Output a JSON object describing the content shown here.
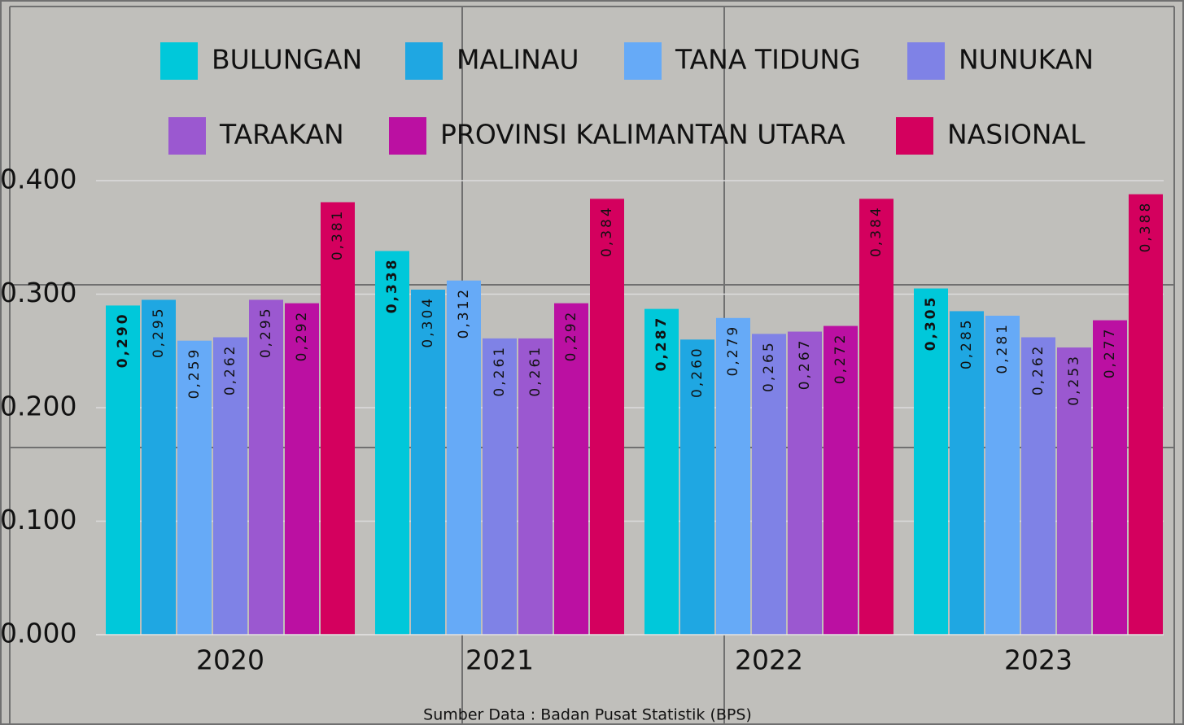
{
  "chart_data": {
    "type": "bar",
    "categories": [
      "2020",
      "2021",
      "2022",
      "2023"
    ],
    "series": [
      {
        "name": "BULUNGAN",
        "color": "#00c8da",
        "bold_labels": true,
        "values": [
          0.29,
          0.338,
          0.287,
          0.305
        ],
        "value_labels": [
          "0,290",
          "0,338",
          "0,287",
          "0,305"
        ]
      },
      {
        "name": "MALINAU",
        "color": "#1fa7e2",
        "values": [
          0.295,
          0.304,
          0.26,
          0.285
        ],
        "value_labels": [
          "0,295",
          "0,304",
          "0,260",
          "0,285"
        ]
      },
      {
        "name": "TANA TIDUNG",
        "color": "#66aaf7",
        "values": [
          0.259,
          0.312,
          0.279,
          0.281
        ],
        "value_labels": [
          "0,259",
          "0,312",
          "0,279",
          "0,281"
        ]
      },
      {
        "name": "NUNUKAN",
        "color": "#7f82e6",
        "values": [
          0.262,
          0.261,
          0.265,
          0.262
        ],
        "value_labels": [
          "0,262",
          "0,261",
          "0,265",
          "0,262"
        ]
      },
      {
        "name": "TARAKAN",
        "color": "#9b58d0",
        "values": [
          0.295,
          0.261,
          0.267,
          0.253
        ],
        "value_labels": [
          "0,295",
          "0,261",
          "0,267",
          "0,253"
        ]
      },
      {
        "name": "PROVINSI KALIMANTAN UTARA",
        "color": "#bb10a2",
        "values": [
          0.292,
          0.292,
          0.272,
          0.277
        ],
        "value_labels": [
          "0,292",
          "0,292",
          "0,272",
          "0,277"
        ]
      },
      {
        "name": "NASIONAL",
        "color": "#d4005e",
        "values": [
          0.381,
          0.384,
          0.384,
          0.388
        ],
        "value_labels": [
          "0,381",
          "0,384",
          "0,384",
          "0,388"
        ]
      }
    ],
    "ylim": [
      0,
      0.4
    ],
    "yticks": [
      {
        "value": 0,
        "label": "0.000"
      },
      {
        "value": 0.1,
        "label": "0.100"
      },
      {
        "value": 0.2,
        "label": "0.200"
      },
      {
        "value": 0.3,
        "label": "0.300"
      },
      {
        "value": 0.4,
        "label": "0.400"
      }
    ],
    "grid": true,
    "legend": "top",
    "source": "Sumber Data : Badan Pusat Statistik (BPS)"
  }
}
